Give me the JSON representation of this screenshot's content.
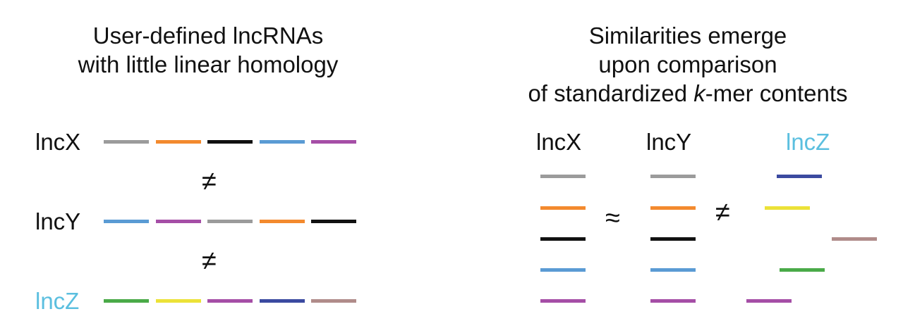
{
  "colors": {
    "gray": "#9b9b9b",
    "orange": "#f38a2e",
    "black": "#111111",
    "blue": "#5a9bd4",
    "purple": "#a54ea6",
    "green": "#4aaa48",
    "yellow": "#ece238",
    "navy": "#3b4aa0",
    "mauve": "#b08c8a",
    "lncz_label": "#5bbfdf"
  },
  "left": {
    "title_line1": "User-defined lncRNAs",
    "title_line2": "with little linear homology",
    "rows": [
      {
        "label": "lncX",
        "segments": [
          "gray",
          "orange",
          "black",
          "blue",
          "purple"
        ]
      },
      {
        "label": "lncY",
        "segments": [
          "blue",
          "purple",
          "gray",
          "orange",
          "black"
        ]
      },
      {
        "label": "lncZ",
        "segments": [
          "green",
          "yellow",
          "purple",
          "navy",
          "mauve"
        ]
      }
    ],
    "op_xy": "≠",
    "op_yz": "≠"
  },
  "right": {
    "title_line1": "Similarities emerge",
    "title_line2": "upon comparison",
    "title_line3_pre": "of standardized ",
    "title_line3_em": "k",
    "title_line3_post": "-mer contents",
    "columns": [
      {
        "label": "lncX",
        "segments": [
          "gray",
          "orange",
          "black",
          "blue",
          "purple"
        ]
      },
      {
        "label": "lncY",
        "segments": [
          "gray",
          "orange",
          "black",
          "blue",
          "purple"
        ]
      },
      {
        "label": "lncZ",
        "segments": [
          "navy",
          "yellow",
          "mauve",
          "green",
          "purple"
        ]
      }
    ],
    "op_xy": "≈",
    "op_yz": "≠"
  }
}
